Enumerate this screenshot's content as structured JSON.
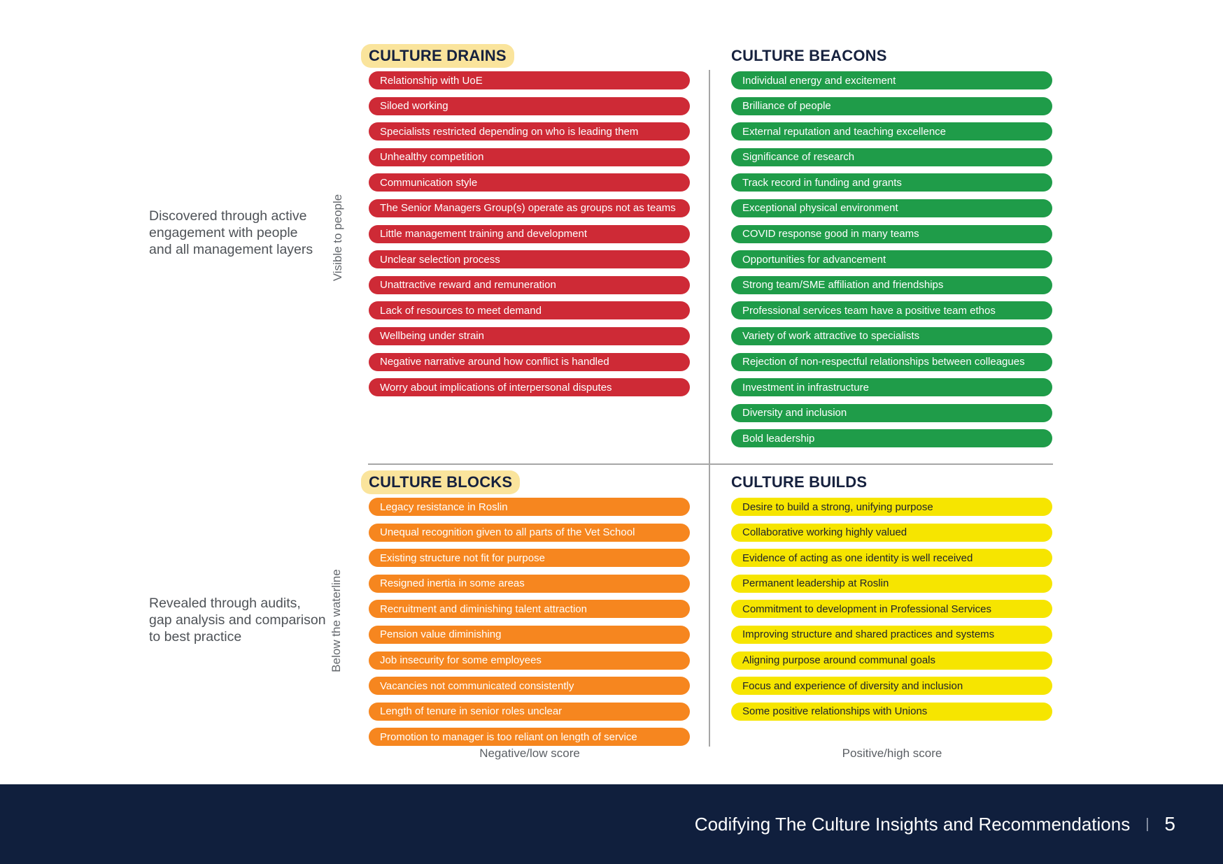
{
  "colors": {
    "drains_red": "#ce2a36",
    "beacons_green": "#1f9c49",
    "blocks_orange": "#f6861f",
    "builds_yellow": "#f6e500",
    "title_highlight": "#fae49c",
    "heading_navy": "#16213e",
    "footer_navy": "#101f3d",
    "divider_gray": "#a6a6a6"
  },
  "annotations": {
    "top": "Discovered through active\nengagement with people\nand all management layers",
    "bottom": "Revealed through audits,\ngap analysis and comparison\nto best practice"
  },
  "rotated_labels": {
    "top": "Visible to people",
    "bottom": "Below the waterline"
  },
  "quadrants": [
    {
      "id": "drains",
      "title": "CULTURE DRAINS",
      "highlighted": true,
      "pill_color": "#ce2a36",
      "item_text_color": "#ffffff",
      "items": [
        "Relationship with UoE",
        "Siloed working",
        "Specialists restricted depending on who is leading them",
        "Unhealthy competition",
        "Communication style",
        "The Senior Managers Group(s) operate as groups not as teams",
        "Little management training and development",
        "Unclear selection process",
        "Unattractive reward and remuneration",
        "Lack of resources to meet demand",
        "Wellbeing under strain",
        "Negative narrative around how conflict is handled",
        "Worry about implications of interpersonal disputes"
      ]
    },
    {
      "id": "beacons",
      "title": "CULTURE BEACONS",
      "highlighted": false,
      "pill_color": "#1f9c49",
      "item_text_color": "#ffffff",
      "items": [
        "Individual energy and excitement",
        "Brilliance of people",
        "External reputation and teaching excellence",
        "Significance of research",
        "Track record in funding and grants",
        "Exceptional physical environment",
        "COVID response good in many teams",
        "Opportunities for advancement",
        "Strong team/SME affiliation and friendships",
        "Professional services team have a positive team ethos",
        "Variety of work attractive to specialists",
        "Rejection of non-respectful relationships between colleagues",
        "Investment in infrastructure",
        "Diversity and inclusion",
        "Bold leadership"
      ]
    },
    {
      "id": "blocks",
      "title": "CULTURE BLOCKS",
      "highlighted": true,
      "pill_color": "#f6861f",
      "item_text_color": "#ffffff",
      "items": [
        "Legacy resistance in Roslin",
        "Unequal recognition given to all parts of the Vet School",
        "Existing structure not fit for purpose",
        "Resigned inertia in some areas",
        "Recruitment and diminishing talent attraction",
        "Pension value diminishing",
        "Job insecurity for some employees",
        "Vacancies not communicated consistently",
        "Length of tenure in senior roles unclear",
        "Promotion to manager is too reliant on length of service"
      ]
    },
    {
      "id": "builds",
      "title": "CULTURE BUILDS",
      "highlighted": false,
      "pill_color": "#f6e500",
      "item_text_color": "#20242b",
      "items": [
        "Desire to build a strong, unifying purpose",
        "Collaborative working highly valued",
        "Evidence of acting as one identity is well received",
        "Permanent leadership at Roslin",
        "Commitment to development in Professional Services",
        "Improving structure and shared practices and systems",
        "Aligning purpose around communal goals",
        "Focus and experience of diversity and inclusion",
        "Some positive relationships with Unions"
      ]
    }
  ],
  "axis": {
    "left": "Negative/low score",
    "right": "Positive/high score"
  },
  "footer": {
    "title": "Codifying The Culture Insights and Recommendations",
    "separator": "|",
    "page": "5"
  }
}
